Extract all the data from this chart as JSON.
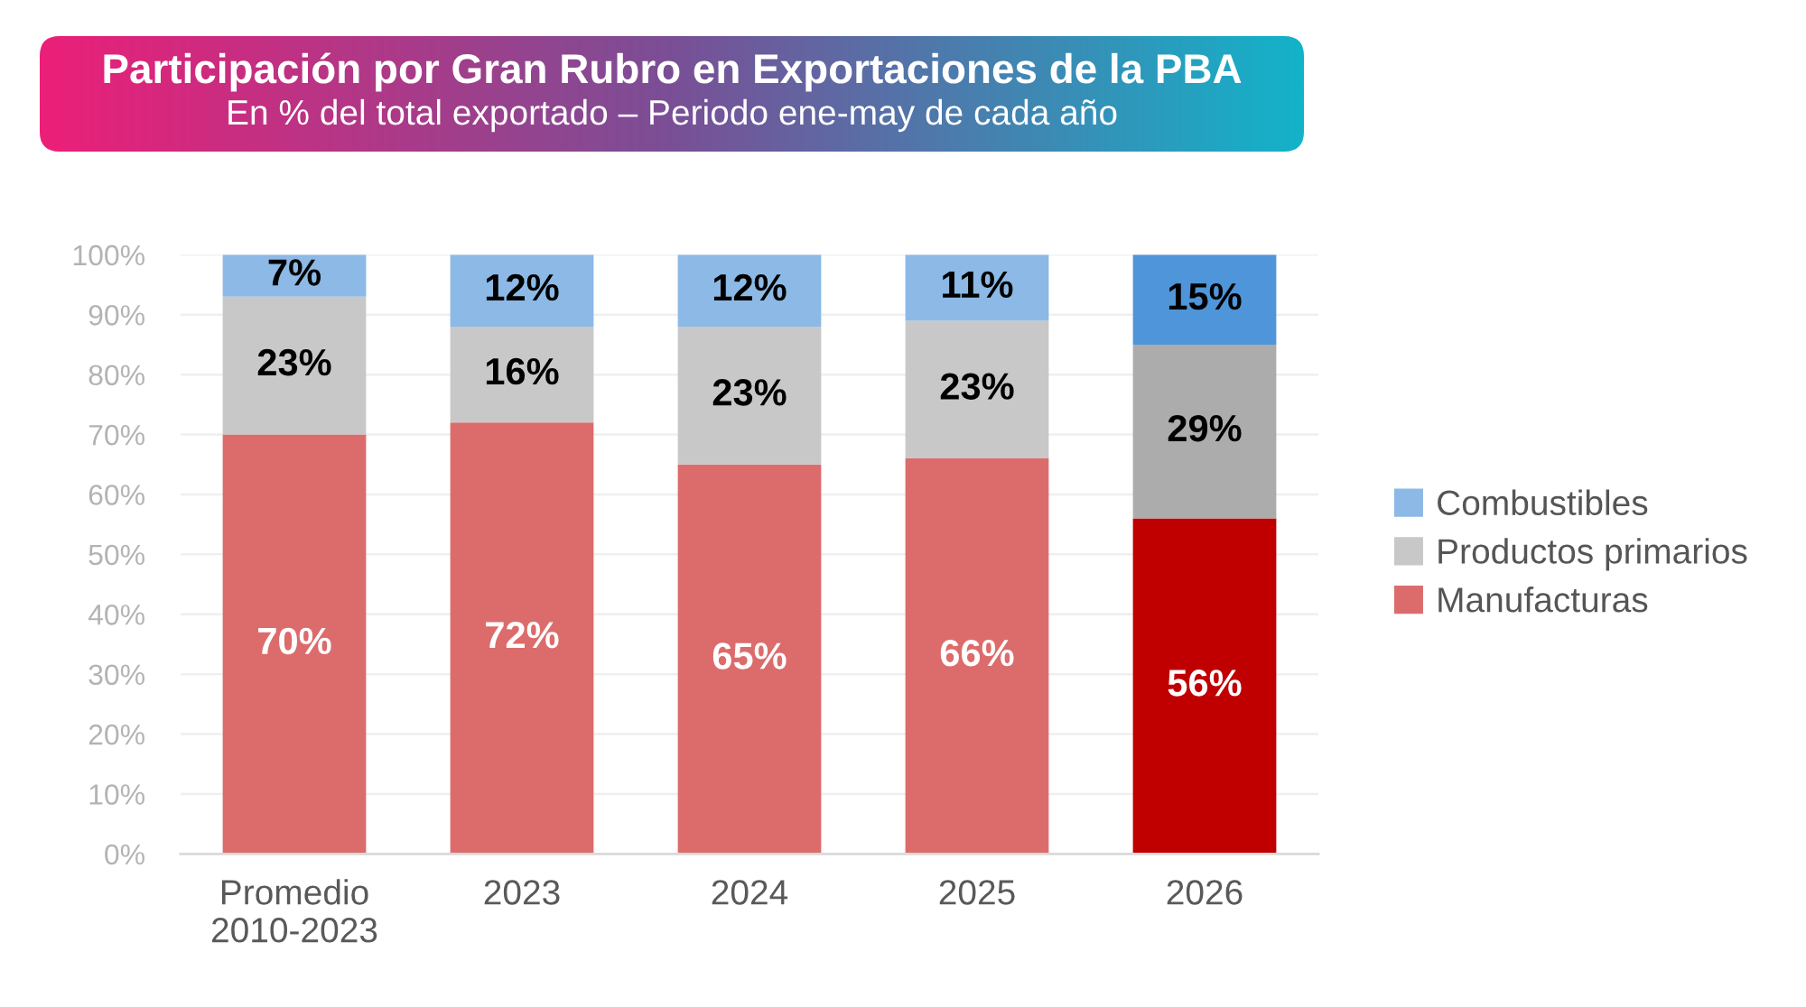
{
  "chart_data": {
    "type": "bar",
    "title": "Participación por Gran Rubro en Exportaciones de la PBA",
    "subtitle": "En % del total exportado – Periodo ene-may de cada año",
    "categories": [
      "Promedio\n2010-2023",
      "2023",
      "2024",
      "2025",
      "2026"
    ],
    "stacked": true,
    "series": [
      {
        "name": "Manufacturas",
        "color": "#dc6c6c",
        "colors": [
          "#dc6c6c",
          "#dc6c6c",
          "#dc6c6c",
          "#dc6c6c",
          "#c00000"
        ],
        "values": [
          70,
          72,
          65,
          66,
          56
        ],
        "value_labels": [
          "70%",
          "72%",
          "65%",
          "66%",
          "56%"
        ]
      },
      {
        "name": "Productos primarios",
        "color": "#c8c8c8",
        "colors": [
          "#c8c8c8",
          "#c8c8c8",
          "#c8c8c8",
          "#c8c8c8",
          "#acacac"
        ],
        "values": [
          23,
          16,
          23,
          23,
          29
        ],
        "value_labels": [
          "23%",
          "16%",
          "23%",
          "23%",
          "29%"
        ]
      },
      {
        "name": "Combustibles",
        "color": "#8cb9e6",
        "colors": [
          "#8cb9e6",
          "#8cb9e6",
          "#8cb9e6",
          "#8cb9e6",
          "#4f95d9"
        ],
        "values": [
          7,
          12,
          12,
          11,
          15
        ],
        "value_labels": [
          "7%",
          "12%",
          "12%",
          "11%",
          "15%"
        ]
      }
    ],
    "ylim": [
      0,
      100
    ],
    "yticks": [
      {
        "value": 0,
        "label": "0%"
      },
      {
        "value": 10,
        "label": "10%"
      },
      {
        "value": 20,
        "label": "20%"
      },
      {
        "value": 30,
        "label": "30%"
      },
      {
        "value": 40,
        "label": "40%"
      },
      {
        "value": 50,
        "label": "50%"
      },
      {
        "value": 60,
        "label": "60%"
      },
      {
        "value": 70,
        "label": "70%"
      },
      {
        "value": 80,
        "label": "80%"
      },
      {
        "value": 90,
        "label": "90%"
      },
      {
        "value": 100,
        "label": "100%"
      }
    ],
    "grid": "y",
    "legend": "right"
  }
}
